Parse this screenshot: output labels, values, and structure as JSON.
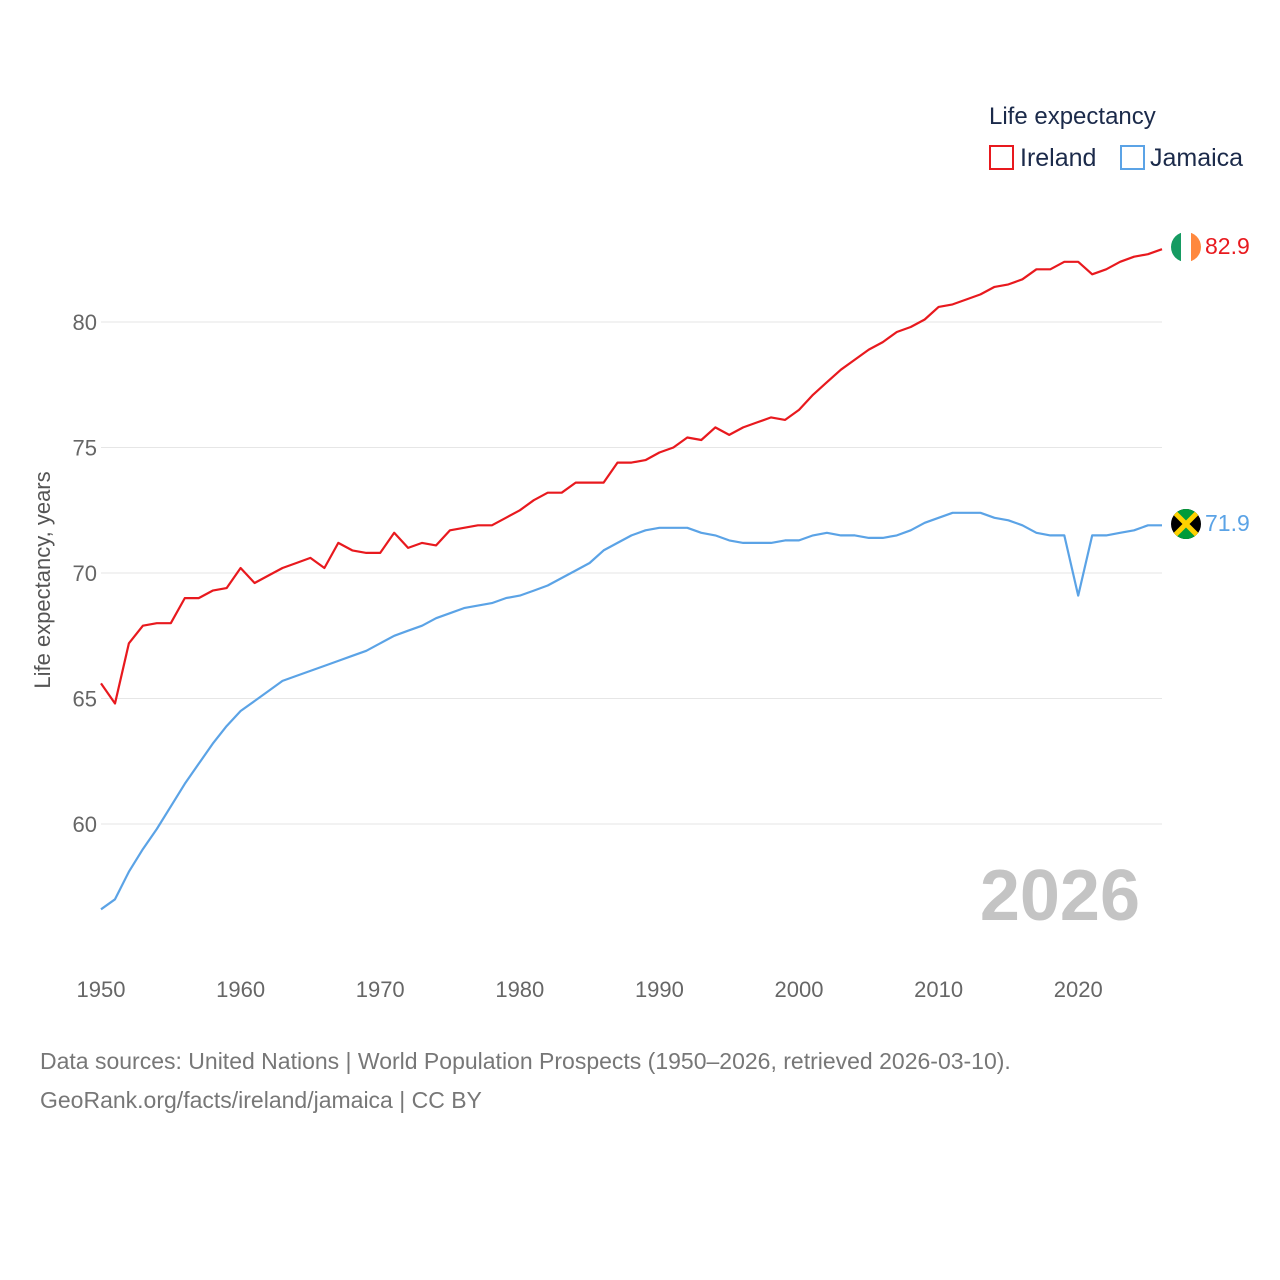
{
  "chart_data": {
    "type": "line",
    "title": "",
    "xlabel": "",
    "ylabel": "Life expectancy, years",
    "xlim": [
      1950,
      2026
    ],
    "ylim": [
      55.5,
      84.5
    ],
    "yticks": [
      60,
      65,
      70,
      75,
      80
    ],
    "xticks": [
      1950,
      1960,
      1970,
      1980,
      1990,
      2000,
      2010,
      2020
    ],
    "grid": true,
    "legend": {
      "title": "Life expectancy",
      "position": "top-right"
    },
    "year_label": "2026",
    "x": [
      1950,
      1951,
      1952,
      1953,
      1954,
      1955,
      1956,
      1957,
      1958,
      1959,
      1960,
      1961,
      1962,
      1963,
      1964,
      1965,
      1966,
      1967,
      1968,
      1969,
      1970,
      1971,
      1972,
      1973,
      1974,
      1975,
      1976,
      1977,
      1978,
      1979,
      1980,
      1981,
      1982,
      1983,
      1984,
      1985,
      1986,
      1987,
      1988,
      1989,
      1990,
      1991,
      1992,
      1993,
      1994,
      1995,
      1996,
      1997,
      1998,
      1999,
      2000,
      2001,
      2002,
      2003,
      2004,
      2005,
      2006,
      2007,
      2008,
      2009,
      2010,
      2011,
      2012,
      2013,
      2014,
      2015,
      2016,
      2017,
      2018,
      2019,
      2020,
      2021,
      2022,
      2023,
      2024,
      2025,
      2026
    ],
    "series": [
      {
        "name": "Ireland",
        "color": "#e8191e",
        "end_value": "82.9",
        "values": [
          65.6,
          64.8,
          67.2,
          67.9,
          68.0,
          68.0,
          69.0,
          69.0,
          69.3,
          69.4,
          70.2,
          69.6,
          69.9,
          70.2,
          70.4,
          70.6,
          70.2,
          71.2,
          70.9,
          70.8,
          70.8,
          71.6,
          71.0,
          71.2,
          71.1,
          71.7,
          71.8,
          71.9,
          71.9,
          72.2,
          72.5,
          72.9,
          73.2,
          73.2,
          73.6,
          73.6,
          73.6,
          74.4,
          74.4,
          74.5,
          74.8,
          75.0,
          75.4,
          75.3,
          75.8,
          75.5,
          75.8,
          76.0,
          76.2,
          76.1,
          76.5,
          77.1,
          77.6,
          78.1,
          78.5,
          78.9,
          79.2,
          79.6,
          79.8,
          80.1,
          80.6,
          80.7,
          80.9,
          81.1,
          81.4,
          81.5,
          81.7,
          82.1,
          82.1,
          82.4,
          82.4,
          81.9,
          82.1,
          82.4,
          82.6,
          82.7,
          82.9
        ]
      },
      {
        "name": "Jamaica",
        "color": "#5ba3e6",
        "end_value": "71.9",
        "values": [
          56.6,
          57.0,
          58.1,
          59.0,
          59.8,
          60.7,
          61.6,
          62.4,
          63.2,
          63.9,
          64.5,
          64.9,
          65.3,
          65.7,
          65.9,
          66.1,
          66.3,
          66.5,
          66.7,
          66.9,
          67.2,
          67.5,
          67.7,
          67.9,
          68.2,
          68.4,
          68.6,
          68.7,
          68.8,
          69.0,
          69.1,
          69.3,
          69.5,
          69.8,
          70.1,
          70.4,
          70.9,
          71.2,
          71.5,
          71.7,
          71.8,
          71.8,
          71.8,
          71.6,
          71.5,
          71.3,
          71.2,
          71.2,
          71.2,
          71.3,
          71.3,
          71.5,
          71.6,
          71.5,
          71.5,
          71.4,
          71.4,
          71.5,
          71.7,
          72.0,
          72.2,
          72.4,
          72.4,
          72.4,
          72.2,
          72.1,
          71.9,
          71.6,
          71.5,
          71.5,
          69.1,
          71.5,
          71.5,
          71.6,
          71.7,
          71.9,
          71.9
        ]
      }
    ]
  },
  "footer": {
    "line1": "Data sources: United Nations | World Population Prospects (1950–2026, retrieved 2026-03-10).",
    "line2": "GeoRank.org/facts/ireland/jamaica | CC BY"
  },
  "flags": {
    "ireland": {
      "name": "ireland-flag-icon",
      "colors": [
        "#169b62",
        "#ffffff",
        "#ff883e"
      ]
    },
    "jamaica": {
      "name": "jamaica-flag-icon",
      "colors": [
        "#000000",
        "#fed100",
        "#009b3a"
      ]
    }
  }
}
